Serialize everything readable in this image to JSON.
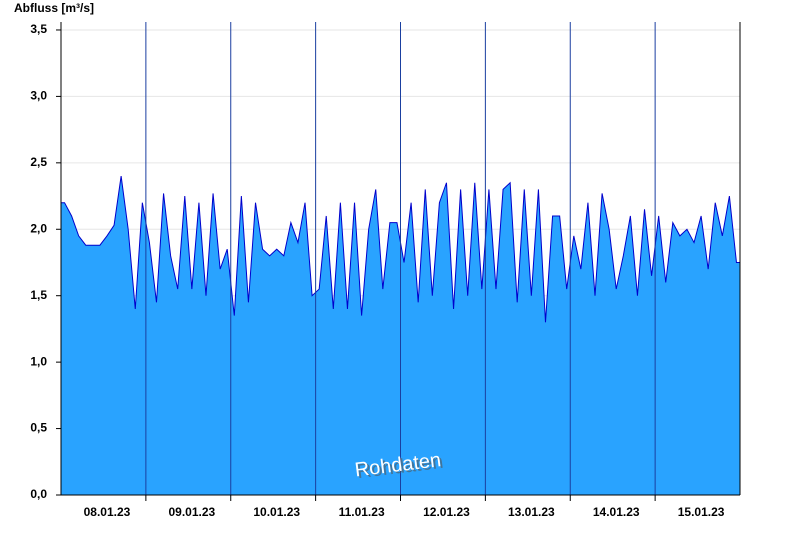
{
  "chart_data": {
    "type": "area",
    "title": "Abfluss [m³/s]",
    "annotation": "Rohdaten",
    "categories": [
      null,
      null,
      null,
      null,
      null,
      null,
      "08.01.23",
      null,
      null,
      null,
      null,
      null,
      null,
      null,
      null,
      null,
      null,
      null,
      "09.01.23",
      null,
      null,
      null,
      null,
      null,
      null,
      null,
      null,
      null,
      null,
      null,
      "10.01.23",
      null,
      null,
      null,
      null,
      null,
      null,
      null,
      null,
      null,
      null,
      null,
      "11.01.23",
      null,
      null,
      null,
      null,
      null,
      null,
      null,
      null,
      null,
      null,
      null,
      "12.01.23",
      null,
      null,
      null,
      null,
      null,
      null,
      null,
      null,
      null,
      null,
      null,
      "13.01.23",
      null,
      null,
      null,
      null,
      null,
      null,
      null,
      null,
      null,
      null,
      null,
      "14.01.23",
      null,
      null,
      null,
      null,
      null,
      null,
      null,
      null,
      null,
      null,
      null,
      "15.01.23",
      null,
      null,
      null,
      null,
      null
    ],
    "series": [
      {
        "color": "#29a3ff",
        "line_color": "#0000cc",
        "values": [
          2.2,
          2.1,
          1.95,
          1.88,
          1.88,
          1.88,
          1.95,
          2.03,
          2.4,
          2.0,
          1.4,
          2.2,
          1.9,
          1.45,
          2.27,
          1.8,
          1.55,
          2.25,
          1.55,
          2.2,
          1.5,
          2.27,
          1.7,
          1.85,
          1.35,
          2.25,
          1.45,
          2.2,
          1.85,
          1.8,
          1.85,
          1.8,
          2.05,
          1.9,
          2.2,
          1.5,
          1.55,
          2.1,
          1.4,
          2.2,
          1.4,
          2.2,
          1.35,
          2.0,
          2.3,
          1.55,
          2.05,
          2.05,
          1.75,
          2.2,
          1.45,
          2.3,
          1.5,
          2.2,
          2.35,
          1.4,
          2.3,
          1.5,
          2.35,
          1.55,
          2.3,
          1.55,
          2.3,
          2.35,
          1.45,
          2.3,
          1.5,
          2.3,
          1.3,
          2.1,
          2.1,
          1.55,
          1.95,
          1.7,
          2.2,
          1.5,
          2.27,
          2.0,
          1.55,
          1.8,
          2.1,
          1.5,
          2.15,
          1.65,
          2.1,
          1.6,
          2.05,
          1.95,
          2.0,
          1.9,
          2.1,
          1.7,
          2.2,
          1.95,
          2.25,
          1.75
        ]
      }
    ],
    "ylim": [
      0,
      3.56
    ],
    "yticks": [
      {
        "value": 0,
        "label": "0,0"
      },
      {
        "value": 0.5,
        "label": "0,5"
      },
      {
        "value": 1,
        "label": "1,0"
      },
      {
        "value": 1.5,
        "label": "1,5"
      },
      {
        "value": 2,
        "label": "2,0"
      },
      {
        "value": 2.5,
        "label": "2,5"
      },
      {
        "value": 3,
        "label": "3,0"
      },
      {
        "value": 3.5,
        "label": "3,5"
      }
    ],
    "grid": true
  }
}
